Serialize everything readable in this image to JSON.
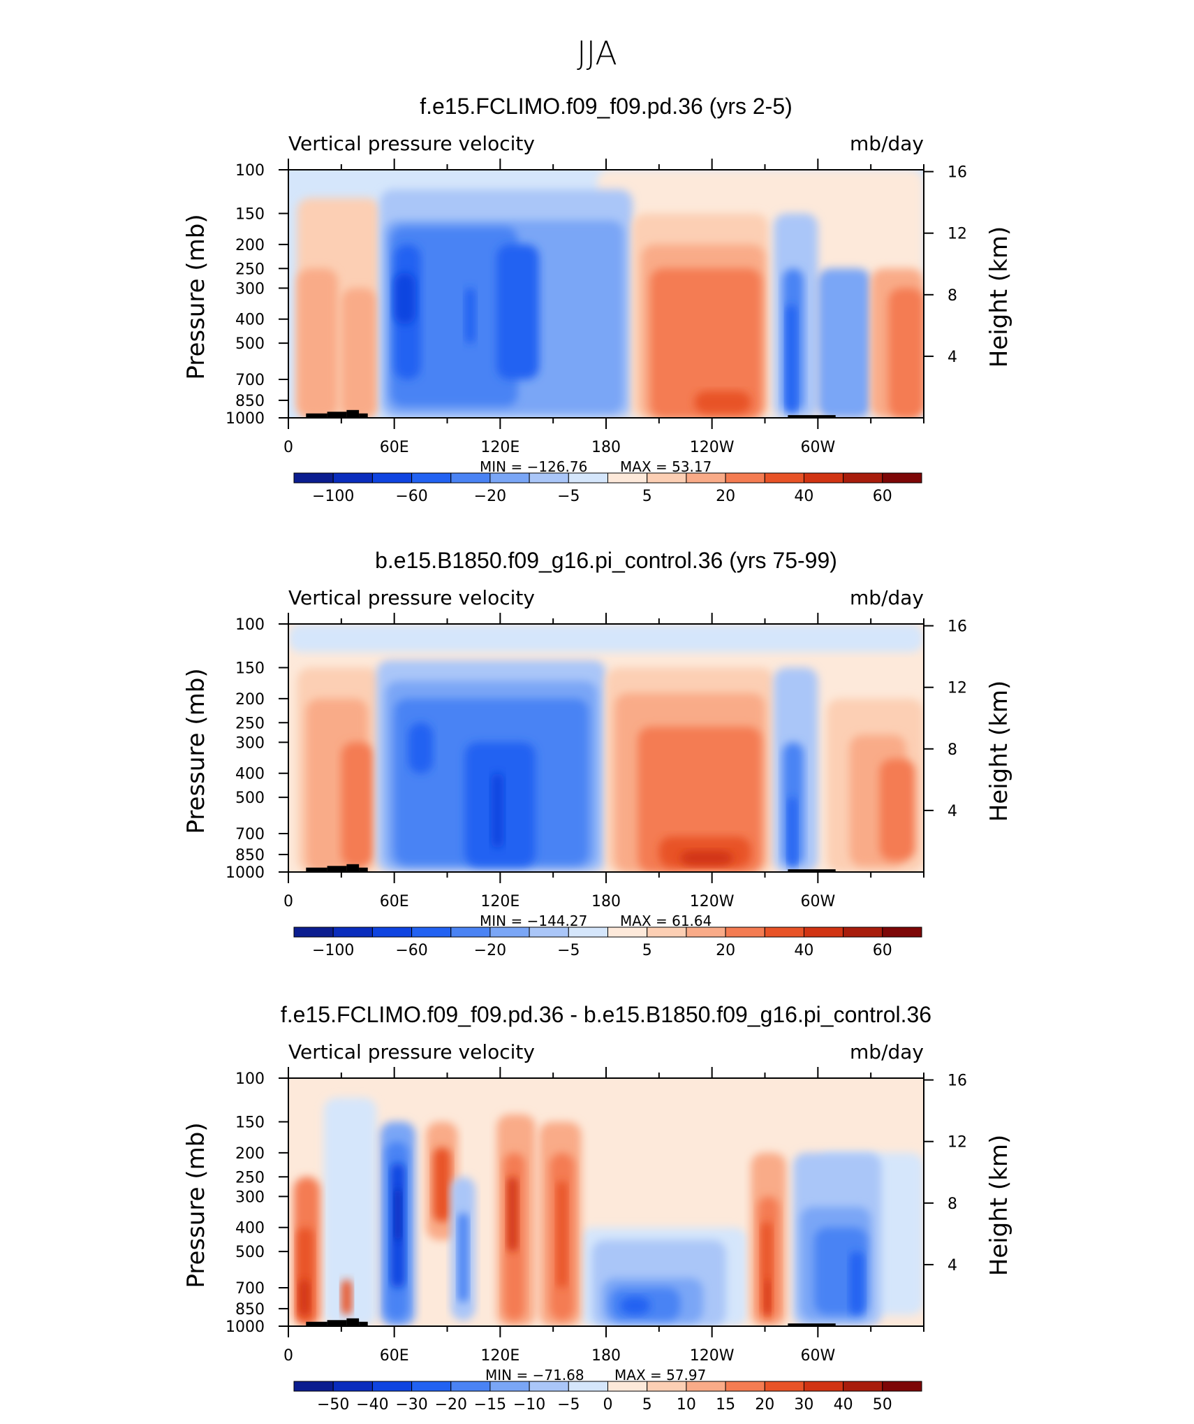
{
  "page_title": "JJA",
  "chart_data": [
    {
      "type": "contour",
      "title": "f.e15.FCLIMO.f09_f09.pd.36 (yrs 2-5)",
      "left_label": "Vertical pressure velocity",
      "right_label": "mb/day",
      "ylabel": "Pressure (mb)",
      "y2label": "Height (km)",
      "x_ticks": [
        "0",
        "60E",
        "120E",
        "180",
        "120W",
        "60W"
      ],
      "x_tick_lon": [
        0,
        60,
        120,
        180,
        240,
        300
      ],
      "xlim": [
        0,
        360
      ],
      "y_ticks": [
        "100",
        "150",
        "200",
        "250",
        "300",
        "400",
        "500",
        "700",
        "850",
        "1000"
      ],
      "y_tick_p": [
        100,
        150,
        200,
        250,
        300,
        400,
        500,
        700,
        850,
        1000
      ],
      "ylim": [
        1000,
        100
      ],
      "y_scale": "log",
      "y2_ticks": [
        "16",
        "12",
        "8",
        "4"
      ],
      "y2_tick_km": [
        16,
        12,
        8,
        4
      ],
      "min_label": "MIN = −126.76",
      "max_label": "MAX = 53.17",
      "min": -126.76,
      "max": 53.17,
      "colorbar_labels": [
        "−100",
        "−60",
        "−20",
        "−5",
        "5",
        "20",
        "40",
        "60"
      ],
      "colorbar_label_index": [
        1,
        3,
        5,
        7,
        9,
        11,
        13,
        15
      ]
    },
    {
      "type": "contour",
      "title": "b.e15.B1850.f09_g16.pi_control.36 (yrs 75-99)",
      "left_label": "Vertical pressure velocity",
      "right_label": "mb/day",
      "ylabel": "Pressure (mb)",
      "y2label": "Height (km)",
      "x_ticks": [
        "0",
        "60E",
        "120E",
        "180",
        "120W",
        "60W"
      ],
      "x_tick_lon": [
        0,
        60,
        120,
        180,
        240,
        300
      ],
      "xlim": [
        0,
        360
      ],
      "y_ticks": [
        "100",
        "150",
        "200",
        "250",
        "300",
        "400",
        "500",
        "700",
        "850",
        "1000"
      ],
      "y_tick_p": [
        100,
        150,
        200,
        250,
        300,
        400,
        500,
        700,
        850,
        1000
      ],
      "ylim": [
        1000,
        100
      ],
      "y_scale": "log",
      "y2_ticks": [
        "16",
        "12",
        "8",
        "4"
      ],
      "y2_tick_km": [
        16,
        12,
        8,
        4
      ],
      "min_label": "MIN = −144.27",
      "max_label": "MAX = 61.64",
      "min": -144.27,
      "max": 61.64,
      "colorbar_labels": [
        "−100",
        "−60",
        "−20",
        "−5",
        "5",
        "20",
        "40",
        "60"
      ],
      "colorbar_label_index": [
        1,
        3,
        5,
        7,
        9,
        11,
        13,
        15
      ]
    },
    {
      "type": "contour",
      "title": "f.e15.FCLIMO.f09_f09.pd.36 - b.e15.B1850.f09_g16.pi_control.36",
      "left_label": "Vertical pressure velocity",
      "right_label": "mb/day",
      "ylabel": "Pressure (mb)",
      "y2label": "Height (km)",
      "x_ticks": [
        "0",
        "60E",
        "120E",
        "180",
        "120W",
        "60W"
      ],
      "x_tick_lon": [
        0,
        60,
        120,
        180,
        240,
        300
      ],
      "xlim": [
        0,
        360
      ],
      "y_ticks": [
        "100",
        "150",
        "200",
        "250",
        "300",
        "400",
        "500",
        "700",
        "850",
        "1000"
      ],
      "y_tick_p": [
        100,
        150,
        200,
        250,
        300,
        400,
        500,
        700,
        850,
        1000
      ],
      "ylim": [
        1000,
        100
      ],
      "y_scale": "log",
      "y2_ticks": [
        "16",
        "12",
        "8",
        "4"
      ],
      "y2_tick_km": [
        16,
        12,
        8,
        4
      ],
      "min_label": "MIN = −71.68",
      "max_label": "MAX = 57.97",
      "min": -71.68,
      "max": 57.97,
      "colorbar_labels": [
        "−50",
        "−40",
        "−30",
        "−20",
        "−15",
        "−10",
        "−5",
        "0",
        "5",
        "10",
        "15",
        "20",
        "30",
        "40",
        "50"
      ],
      "colorbar_label_index": [
        1,
        2,
        3,
        4,
        5,
        6,
        7,
        8,
        9,
        10,
        11,
        12,
        13,
        14,
        15
      ]
    }
  ],
  "colors": {
    "palette": [
      "#0b1d8f",
      "#0a2dbd",
      "#0f44e0",
      "#2262f2",
      "#4a83f4",
      "#7aa6f6",
      "#aac6f8",
      "#d5e6fb",
      "#fde9da",
      "#fccfb4",
      "#f9ab88",
      "#f47c52",
      "#e85327",
      "#d13413",
      "#a81d0c",
      "#7d0707"
    ],
    "topography": "#000000"
  }
}
